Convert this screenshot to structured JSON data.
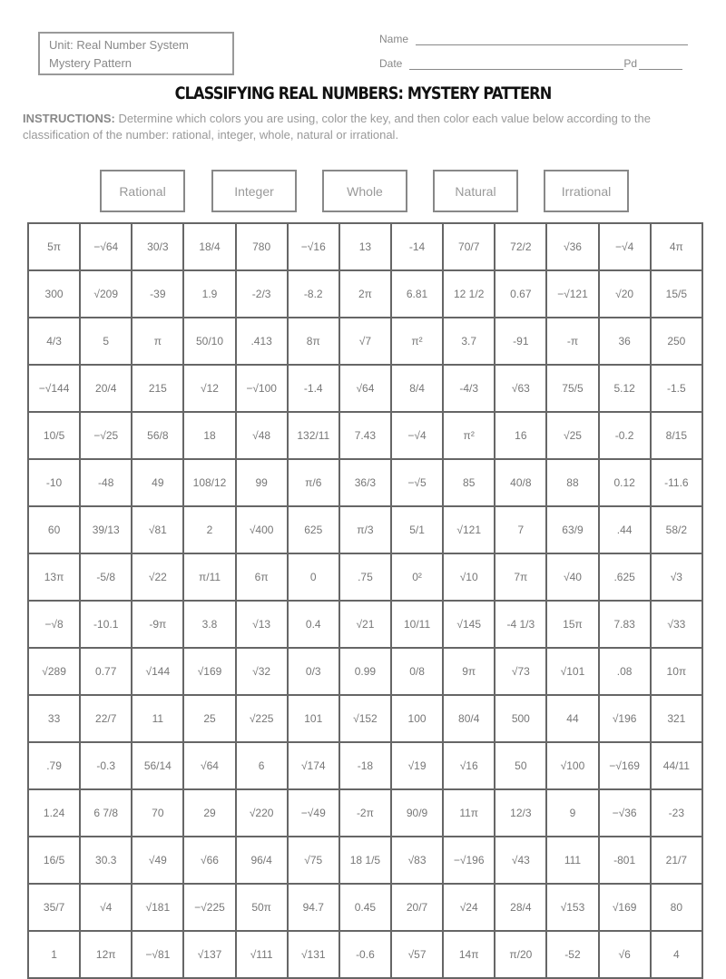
{
  "header": {
    "unit_line1": "Unit: Real Number System",
    "unit_line2": "Mystery Pattern",
    "name_label": "Name",
    "date_label": "Date",
    "period_label": "Pd"
  },
  "title": "CLASSIFYING REAL NUMBERS: MYSTERY PATTERN",
  "instructions": {
    "label": "INSTRUCTIONS:",
    "text": "Determine which colors you are using, color the key, and then color each value below according to the classification of the number: rational, integer, whole, natural or irrational."
  },
  "key": [
    "Rational",
    "Integer",
    "Whole",
    "Natural",
    "Irrational"
  ],
  "grid": [
    [
      "5π",
      "−√64",
      "30/3",
      "18/4",
      "780",
      "−√16",
      "13",
      "-14",
      "70/7",
      "72/2",
      "√36",
      "−√4",
      "4π"
    ],
    [
      "300",
      "√209",
      "-39",
      "1.9",
      "-2/3",
      "-8.2",
      "2π",
      "6.81",
      "12 1/2",
      "0.67",
      "−√121",
      "√20",
      "15/5"
    ],
    [
      "4/3",
      "5",
      "π",
      "50/10",
      ".413",
      "8π",
      "√7",
      "π²",
      "3.7",
      "-91",
      "-π",
      "36",
      "250"
    ],
    [
      "−√144",
      "20/4",
      "215",
      "√12",
      "−√100",
      "-1.4",
      "√64",
      "8/4",
      "-4/3",
      "√63",
      "75/5",
      "5.12",
      "-1.5"
    ],
    [
      "10/5",
      "−√25",
      "56/8",
      "18",
      "√48",
      "132/11",
      "7.43",
      "−√4",
      "π²",
      "16",
      "√25",
      "-0.2",
      "8/15"
    ],
    [
      "-10",
      "-48",
      "49",
      "108/12",
      "99",
      "π/6",
      "36/3",
      "−√5",
      "85",
      "40/8",
      "88",
      "0.12",
      "-11.6"
    ],
    [
      "60",
      "39/13",
      "√81",
      "2",
      "√400",
      "625",
      "π/3",
      "5/1",
      "√121",
      "7",
      "63/9",
      ".44",
      "58/2"
    ],
    [
      "13π",
      "-5/8",
      "√22",
      "π/11",
      "6π",
      "0",
      ".75",
      "0²",
      "√10",
      "7π",
      "√40",
      ".625",
      "√3"
    ],
    [
      "−√8",
      "-10.1",
      "-9π",
      "3.8",
      "√13",
      "0.4",
      "√21",
      "10/11",
      "√145",
      "-4 1/3",
      "15π",
      "7.83",
      "√33"
    ],
    [
      "√289",
      "0.77",
      "√144",
      "√169",
      "√32",
      "0/3",
      "0.99",
      "0/8",
      "9π",
      "√73",
      "√101",
      ".08",
      "10π"
    ],
    [
      "33",
      "22/7",
      "11",
      "25",
      "√225",
      "101",
      "√152",
      "100",
      "80/4",
      "500",
      "44",
      "√196",
      "321"
    ],
    [
      ".79",
      "-0.3",
      "56/14",
      "√64",
      "6",
      "√174",
      "-18",
      "√19",
      "√16",
      "50",
      "√100",
      "−√169",
      "44/11"
    ],
    [
      "1.24",
      "6 7/8",
      "70",
      "29",
      "√220",
      "−√49",
      "-2π",
      "90/9",
      "11π",
      "12/3",
      "9",
      "−√36",
      "-23"
    ],
    [
      "16/5",
      "30.3",
      "√49",
      "√66",
      "96/4",
      "√75",
      "18 1/5",
      "√83",
      "−√196",
      "√43",
      "111",
      "-801",
      "21/7"
    ],
    [
      "35/7",
      "√4",
      "√181",
      "−√225",
      "50π",
      "94.7",
      "0.45",
      "20/7",
      "√24",
      "28/4",
      "√153",
      "√169",
      "80"
    ],
    [
      "1",
      "12π",
      "−√81",
      "√137",
      "√111",
      "√131",
      "-0.6",
      "√57",
      "14π",
      "π/20",
      "-52",
      "√6",
      "4"
    ]
  ]
}
